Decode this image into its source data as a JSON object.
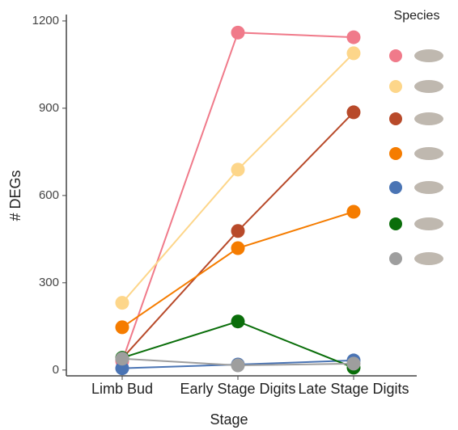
{
  "chart_data": {
    "type": "line",
    "x_label": "Stage",
    "y_label": "# DEGs",
    "legend_title": "Species",
    "categories": [
      "Limb Bud",
      "Early Stage Digits",
      "Late Stage Digits"
    ],
    "series": [
      {
        "color": "#f07a8a",
        "values": [
          30,
          1160,
          1144
        ]
      },
      {
        "color": "#fdd68a",
        "values": [
          231,
          689,
          1089
        ]
      },
      {
        "color": "#b84a2a",
        "values": [
          40,
          478,
          886
        ]
      },
      {
        "color": "#f57c00",
        "values": [
          147,
          419,
          544
        ]
      },
      {
        "color": "#4a74b4",
        "values": [
          6,
          19,
          33
        ]
      },
      {
        "color": "#0a6e0a",
        "values": [
          42,
          167,
          8
        ]
      },
      {
        "color": "#9e9e9e",
        "values": [
          39,
          16,
          22
        ]
      }
    ],
    "ylim": [
      -20,
      1222
    ],
    "yticks": [
      0,
      300,
      600,
      900,
      1200
    ],
    "legend": "right"
  }
}
